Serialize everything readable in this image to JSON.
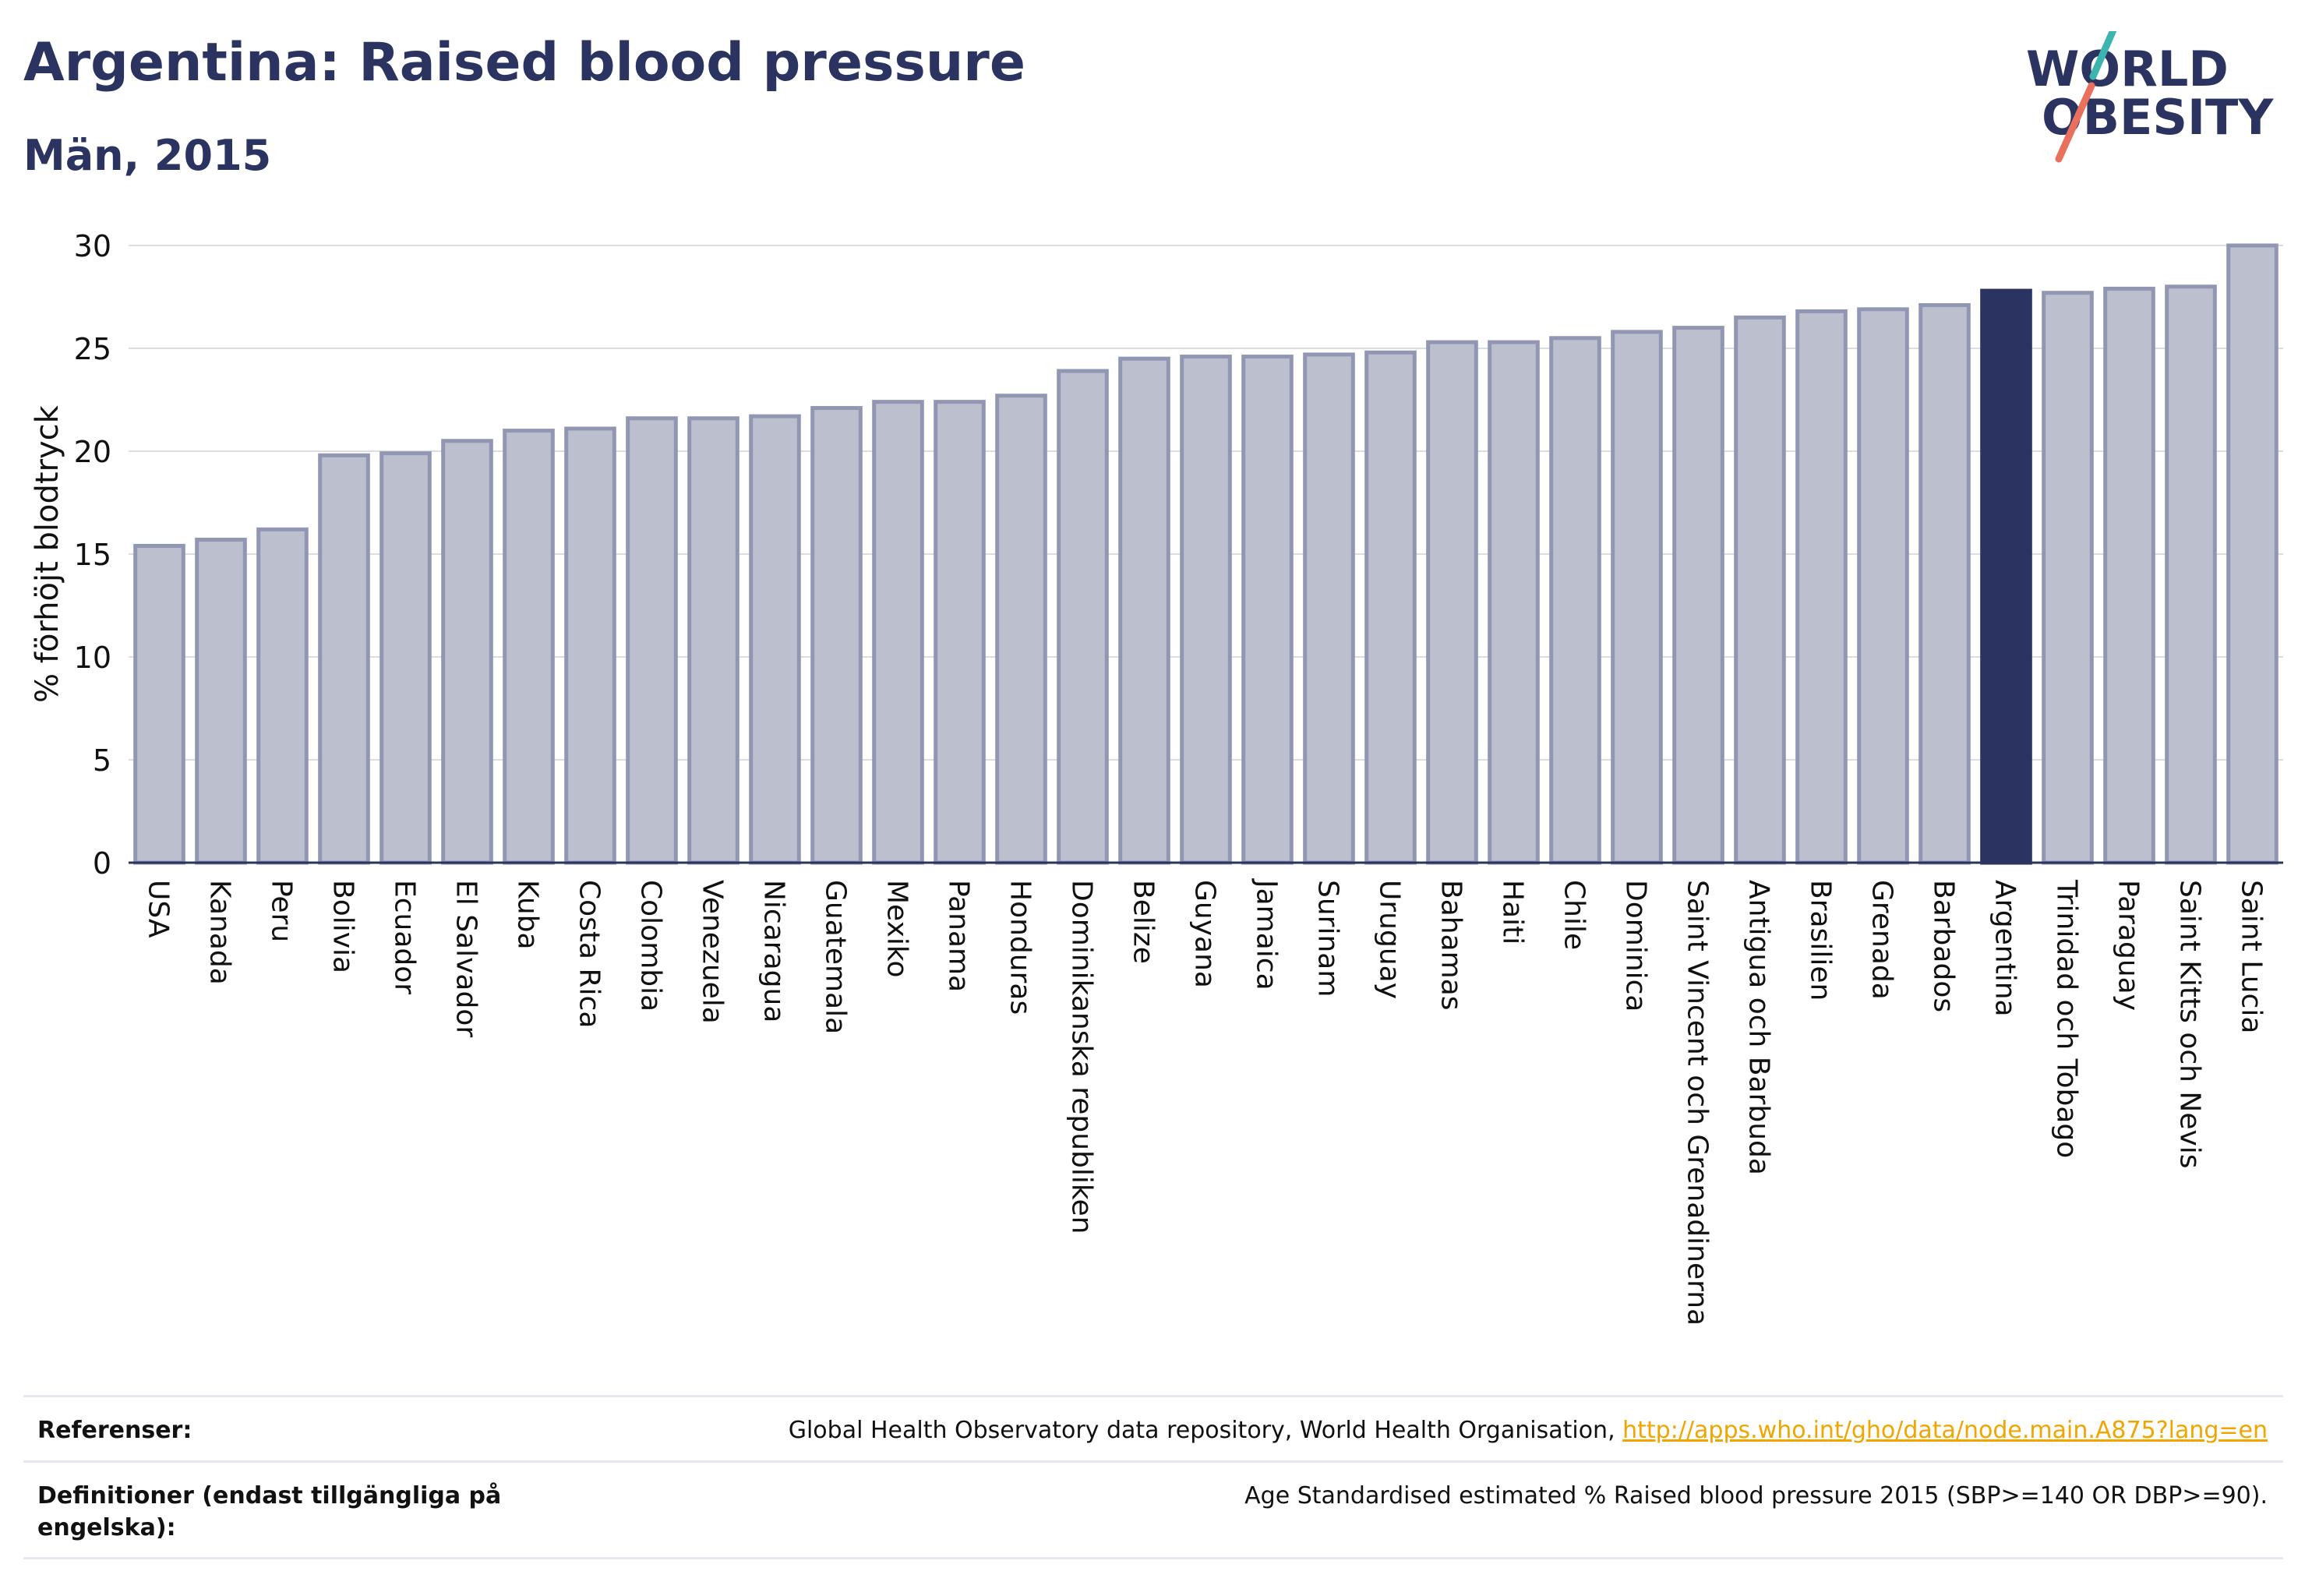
{
  "header": {
    "title": "Argentina: Raised blood pressure",
    "subtitle": "Män, 2015"
  },
  "logo": {
    "line1": "WORLD",
    "line2": "OBESITY"
  },
  "chart_data": {
    "type": "bar",
    "ylabel": "% förhöjt blodtryck",
    "ylim": [
      0,
      30
    ],
    "yticks": [
      0,
      5,
      10,
      15,
      20,
      25,
      30
    ],
    "grid": true,
    "highlight": "Argentina",
    "colors": {
      "bar": "#bcc0ce",
      "bar_edge": "#9196b3",
      "highlight": "#2b3361",
      "grid": "#dcdde3",
      "axis": "#2b3361"
    },
    "categories": [
      "USA",
      "Kanada",
      "Peru",
      "Bolivia",
      "Ecuador",
      "El Salvador",
      "Kuba",
      "Costa Rica",
      "Colombia",
      "Venezuela",
      "Nicaragua",
      "Guatemala",
      "Mexiko",
      "Panama",
      "Honduras",
      "Dominikanska republiken",
      "Belize",
      "Guyana",
      "Jamaica",
      "Surinam",
      "Uruguay",
      "Bahamas",
      "Haiti",
      "Chile",
      "Dominica",
      "Saint Vincent och Grenadinerna",
      "Antigua och Barbuda",
      "Brasilien",
      "Grenada",
      "Barbados",
      "Argentina",
      "Trinidad och Tobago",
      "Paraguay",
      "Saint Kitts och Nevis",
      "Saint Lucia"
    ],
    "values": [
      15.4,
      15.7,
      16.2,
      19.8,
      19.9,
      20.5,
      21.0,
      21.1,
      21.6,
      21.6,
      21.7,
      22.1,
      22.4,
      22.4,
      22.7,
      23.9,
      24.5,
      24.6,
      24.6,
      24.7,
      24.8,
      25.3,
      25.3,
      25.5,
      25.8,
      26.0,
      26.5,
      26.8,
      26.9,
      27.1,
      27.8,
      27.7,
      27.9,
      28.0,
      30.0
    ]
  },
  "footer": {
    "references_label": "Referenser:",
    "references_text": "Global Health Observatory data repository, World Health Organisation, ",
    "references_link": "http://apps.who.int/gho/data/node.main.A875?lang=en",
    "definitions_label": "Definitioner (endast tillgängliga på engelska):",
    "definitions_text": "Age Standardised estimated % Raised blood pressure 2015 (SBP>=140 OR DBP>=90)."
  }
}
